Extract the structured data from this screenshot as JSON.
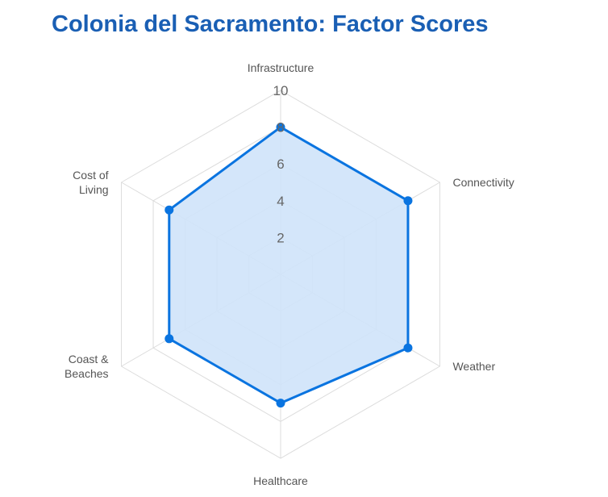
{
  "page": {
    "title": "Colonia del Sacramento: Factor Scores"
  },
  "chart_data": {
    "type": "radar",
    "title": "Colonia del Sacramento: Factor Scores",
    "axes": [
      [
        "Infrastructure"
      ],
      [
        "Connectivity"
      ],
      [
        "Weather"
      ],
      [
        "Healthcare"
      ],
      [
        "Coast &",
        "Beaches"
      ],
      [
        "Cost of",
        "Living"
      ]
    ],
    "categories": [
      "Infrastructure",
      "Connectivity",
      "Weather",
      "Healthcare",
      "Coast & Beaches",
      "Cost of Living"
    ],
    "series": [
      {
        "values": [
          8,
          8,
          8,
          7,
          7,
          7
        ]
      }
    ],
    "r_range": [
      0,
      10
    ],
    "ticks": [
      2,
      4,
      6,
      8,
      10
    ],
    "grid": true,
    "legend": "none",
    "colors": {
      "line": "#0a74e0",
      "fill": "#cfe3fa",
      "grid": "#dcdcdc",
      "title": "#1a5fb4"
    }
  }
}
